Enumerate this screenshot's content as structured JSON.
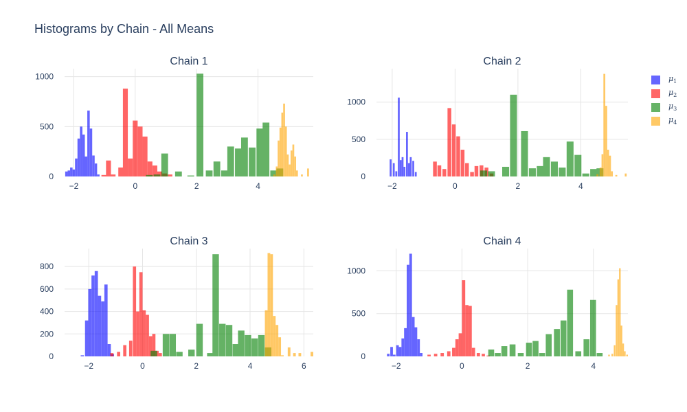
{
  "title": "Histograms by Chain - All Means",
  "legend": [
    {
      "label": "μ",
      "sub": "1",
      "color": "#0000ff"
    },
    {
      "label": "μ",
      "sub": "2",
      "color": "#ff0000"
    },
    {
      "label": "μ",
      "sub": "3",
      "color": "#008000"
    },
    {
      "label": "μ",
      "sub": "4",
      "color": "#ffa500"
    }
  ],
  "chart_data": [
    {
      "type": "histogram",
      "title": "Chain 1",
      "xlim": [
        -2.3,
        5.8
      ],
      "ylim": [
        0,
        1080
      ],
      "xticks": [
        -2,
        0,
        2,
        4
      ],
      "yticks": [
        0,
        500,
        1000
      ],
      "series": [
        {
          "name": "μ₁",
          "color": "#0000ff",
          "bin_width": 0.08,
          "bins": [
            [
              -2.28,
              50
            ],
            [
              -2.2,
              60
            ],
            [
              -2.12,
              90
            ],
            [
              -2.04,
              70
            ],
            [
              -1.96,
              180
            ],
            [
              -1.88,
              380
            ],
            [
              -1.8,
              500
            ],
            [
              -1.72,
              420
            ],
            [
              -1.64,
              200
            ],
            [
              -1.56,
              660
            ],
            [
              -1.48,
              480
            ],
            [
              -1.4,
              210
            ],
            [
              -1.32,
              130
            ],
            [
              -1.24,
              20
            ]
          ]
        },
        {
          "name": "μ₂",
          "color": "#ff0000",
          "bin_width": 0.16,
          "bins": [
            [
              -1.1,
              15
            ],
            [
              -0.95,
              160
            ],
            [
              -0.8,
              20
            ],
            [
              -0.55,
              90
            ],
            [
              -0.4,
              880
            ],
            [
              -0.24,
              180
            ],
            [
              -0.08,
              560
            ],
            [
              0.08,
              500
            ],
            [
              0.24,
              400
            ],
            [
              0.4,
              150
            ],
            [
              0.56,
              110
            ],
            [
              0.72,
              50
            ],
            [
              0.88,
              30
            ],
            [
              1.05,
              20
            ]
          ]
        },
        {
          "name": "μ₃",
          "color": "#008000",
          "bin_width": 0.22,
          "bins": [
            [
              0.35,
              15
            ],
            [
              0.6,
              20
            ],
            [
              0.85,
              230
            ],
            [
              1.3,
              50
            ],
            [
              1.7,
              10
            ],
            [
              2.0,
              1030
            ],
            [
              2.3,
              60
            ],
            [
              2.55,
              150
            ],
            [
              2.8,
              60
            ],
            [
              3.0,
              300
            ],
            [
              3.25,
              280
            ],
            [
              3.45,
              390
            ],
            [
              3.7,
              290
            ],
            [
              3.95,
              480
            ],
            [
              4.15,
              540
            ],
            [
              4.4,
              60
            ],
            [
              4.6,
              80
            ]
          ]
        },
        {
          "name": "μ₄",
          "color": "#ffa500",
          "bin_width": 0.06,
          "bins": [
            [
              4.5,
              20
            ],
            [
              4.58,
              100
            ],
            [
              4.64,
              360
            ],
            [
              4.7,
              490
            ],
            [
              4.76,
              640
            ],
            [
              4.82,
              730
            ],
            [
              4.88,
              500
            ],
            [
              4.94,
              220
            ],
            [
              5.0,
              120
            ],
            [
              5.06,
              260
            ],
            [
              5.12,
              320
            ],
            [
              5.18,
              200
            ],
            [
              5.24,
              60
            ],
            [
              5.4,
              20
            ],
            [
              5.6,
              80
            ]
          ]
        }
      ]
    },
    {
      "type": "histogram",
      "title": "Chain 2",
      "xlim": [
        -2.5,
        5.5
      ],
      "ylim": [
        0,
        1450
      ],
      "xticks": [
        -2,
        0,
        2,
        4
      ],
      "yticks": [
        0,
        500,
        1000
      ],
      "series": [
        {
          "name": "μ₁",
          "color": "#0000ff",
          "bin_width": 0.06,
          "bins": [
            [
              -2.08,
              230
            ],
            [
              -1.98,
              180
            ],
            [
              -1.9,
              70
            ],
            [
              -1.82,
              1060
            ],
            [
              -1.76,
              220
            ],
            [
              -1.7,
              260
            ],
            [
              -1.64,
              130
            ],
            [
              -1.56,
              600
            ],
            [
              -1.5,
              180
            ],
            [
              -1.44,
              260
            ],
            [
              -1.36,
              210
            ],
            [
              -1.28,
              60
            ]
          ]
        },
        {
          "name": "μ₂",
          "color": "#ff0000",
          "bin_width": 0.12,
          "bins": [
            [
              -0.7,
              200
            ],
            [
              -0.56,
              150
            ],
            [
              -0.4,
              100
            ],
            [
              -0.24,
              920
            ],
            [
              -0.1,
              700
            ],
            [
              0.04,
              540
            ],
            [
              0.18,
              360
            ],
            [
              0.32,
              180
            ],
            [
              0.48,
              60
            ],
            [
              0.62,
              140
            ],
            [
              0.78,
              150
            ],
            [
              0.94,
              120
            ],
            [
              1.1,
              40
            ]
          ]
        },
        {
          "name": "μ₃",
          "color": "#008000",
          "bin_width": 0.22,
          "bins": [
            [
              0.8,
              80
            ],
            [
              1.05,
              70
            ],
            [
              1.5,
              130
            ],
            [
              1.75,
              1100
            ],
            [
              2.1,
              610
            ],
            [
              2.35,
              110
            ],
            [
              2.6,
              140
            ],
            [
              2.8,
              260
            ],
            [
              3.05,
              200
            ],
            [
              3.3,
              120
            ],
            [
              3.55,
              470
            ],
            [
              3.8,
              290
            ],
            [
              4.05,
              40
            ],
            [
              4.3,
              100
            ],
            [
              4.5,
              110
            ]
          ]
        },
        {
          "name": "μ₄",
          "color": "#ffa500",
          "bin_width": 0.06,
          "bins": [
            [
              4.5,
              30
            ],
            [
              4.6,
              120
            ],
            [
              4.66,
              300
            ],
            [
              4.72,
              1380
            ],
            [
              4.78,
              950
            ],
            [
              4.84,
              360
            ],
            [
              4.9,
              280
            ],
            [
              4.96,
              70
            ],
            [
              5.1,
              20
            ],
            [
              5.4,
              40
            ]
          ]
        }
      ]
    },
    {
      "type": "histogram",
      "title": "Chain 3",
      "xlim": [
        -2.9,
        6.35
      ],
      "ylim": [
        0,
        960
      ],
      "xticks": [
        -2,
        0,
        2,
        4,
        6
      ],
      "yticks": [
        0,
        200,
        400,
        600,
        800
      ],
      "series": [
        {
          "name": "μ₁",
          "color": "#0000ff",
          "bin_width": 0.12,
          "bins": [
            [
              -2.3,
              10
            ],
            [
              -2.14,
              320
            ],
            [
              -2.02,
              600
            ],
            [
              -1.9,
              720
            ],
            [
              -1.78,
              760
            ],
            [
              -1.66,
              540
            ],
            [
              -1.54,
              490
            ],
            [
              -1.42,
              640
            ],
            [
              -1.3,
              110
            ],
            [
              -1.18,
              20
            ]
          ]
        },
        {
          "name": "μ₂",
          "color": "#ff0000",
          "bin_width": 0.12,
          "bins": [
            [
              -1.2,
              30
            ],
            [
              -0.95,
              40
            ],
            [
              -0.72,
              100
            ],
            [
              -0.5,
              140
            ],
            [
              -0.36,
              800
            ],
            [
              -0.24,
              400
            ],
            [
              -0.12,
              750
            ],
            [
              0.0,
              410
            ],
            [
              0.12,
              370
            ],
            [
              0.24,
              180
            ],
            [
              0.36,
              200
            ],
            [
              0.48,
              50
            ],
            [
              0.6,
              30
            ]
          ]
        },
        {
          "name": "μ₃",
          "color": "#008000",
          "bin_width": 0.24,
          "bins": [
            [
              0.3,
              50
            ],
            [
              0.75,
              200
            ],
            [
              1.0,
              200
            ],
            [
              1.25,
              40
            ],
            [
              1.7,
              60
            ],
            [
              2.0,
              290
            ],
            [
              2.4,
              30
            ],
            [
              2.6,
              910
            ],
            [
              2.85,
              290
            ],
            [
              3.1,
              280
            ],
            [
              3.35,
              110
            ],
            [
              3.55,
              230
            ],
            [
              3.8,
              190
            ],
            [
              4.05,
              160
            ],
            [
              4.3,
              190
            ],
            [
              4.55,
              80
            ]
          ]
        },
        {
          "name": "μ₄",
          "color": "#ffa500",
          "bin_width": 0.1,
          "bins": [
            [
              4.55,
              410
            ],
            [
              4.65,
              920
            ],
            [
              4.75,
              910
            ],
            [
              4.85,
              360
            ],
            [
              4.95,
              280
            ],
            [
              5.05,
              170
            ],
            [
              5.15,
              10
            ],
            [
              5.4,
              80
            ],
            [
              5.6,
              30
            ],
            [
              5.8,
              30
            ],
            [
              6.25,
              40
            ]
          ]
        }
      ]
    },
    {
      "type": "histogram",
      "title": "Chain 4",
      "xlim": [
        -2.6,
        5.05
      ],
      "ylim": [
        0,
        1260
      ],
      "xticks": [
        -2,
        0,
        2,
        4
      ],
      "yticks": [
        0,
        500,
        1000
      ],
      "series": [
        {
          "name": "μ₁",
          "color": "#0000ff",
          "bin_width": 0.08,
          "bins": [
            [
              -2.28,
              30
            ],
            [
              -2.18,
              110
            ],
            [
              -2.1,
              20
            ],
            [
              -2.0,
              130
            ],
            [
              -1.92,
              110
            ],
            [
              -1.84,
              210
            ],
            [
              -1.76,
              330
            ],
            [
              -1.68,
              1070
            ],
            [
              -1.6,
              1200
            ],
            [
              -1.52,
              460
            ],
            [
              -1.44,
              340
            ],
            [
              -1.36,
              200
            ],
            [
              -1.28,
              40
            ]
          ]
        },
        {
          "name": "μ₂",
          "color": "#ff0000",
          "bin_width": 0.1,
          "bins": [
            [
              -1.05,
              20
            ],
            [
              -0.85,
              30
            ],
            [
              -0.65,
              40
            ],
            [
              -0.45,
              60
            ],
            [
              -0.3,
              100
            ],
            [
              -0.2,
              200
            ],
            [
              -0.1,
              270
            ],
            [
              0.0,
              890
            ],
            [
              0.1,
              600
            ],
            [
              0.2,
              590
            ],
            [
              0.3,
              100
            ],
            [
              0.45,
              40
            ],
            [
              0.6,
              30
            ],
            [
              0.75,
              10
            ]
          ]
        },
        {
          "name": "μ₃",
          "color": "#008000",
          "bin_width": 0.18,
          "bins": [
            [
              0.8,
              80
            ],
            [
              1.0,
              40
            ],
            [
              1.2,
              120
            ],
            [
              1.45,
              140
            ],
            [
              1.7,
              40
            ],
            [
              1.95,
              160
            ],
            [
              2.15,
              180
            ],
            [
              2.35,
              40
            ],
            [
              2.55,
              260
            ],
            [
              2.8,
              320
            ],
            [
              3.0,
              420
            ],
            [
              3.2,
              780
            ],
            [
              3.45,
              60
            ],
            [
              3.7,
              200
            ],
            [
              3.9,
              660
            ],
            [
              4.1,
              40
            ]
          ]
        },
        {
          "name": "μ₄",
          "color": "#ffa500",
          "bin_width": 0.05,
          "bins": [
            [
              4.45,
              20
            ],
            [
              4.55,
              30
            ],
            [
              4.62,
              130
            ],
            [
              4.68,
              600
            ],
            [
              4.73,
              900
            ],
            [
              4.78,
              1030
            ],
            [
              4.83,
              360
            ],
            [
              4.88,
              150
            ],
            [
              4.93,
              60
            ],
            [
              5.0,
              20
            ]
          ]
        }
      ]
    }
  ]
}
